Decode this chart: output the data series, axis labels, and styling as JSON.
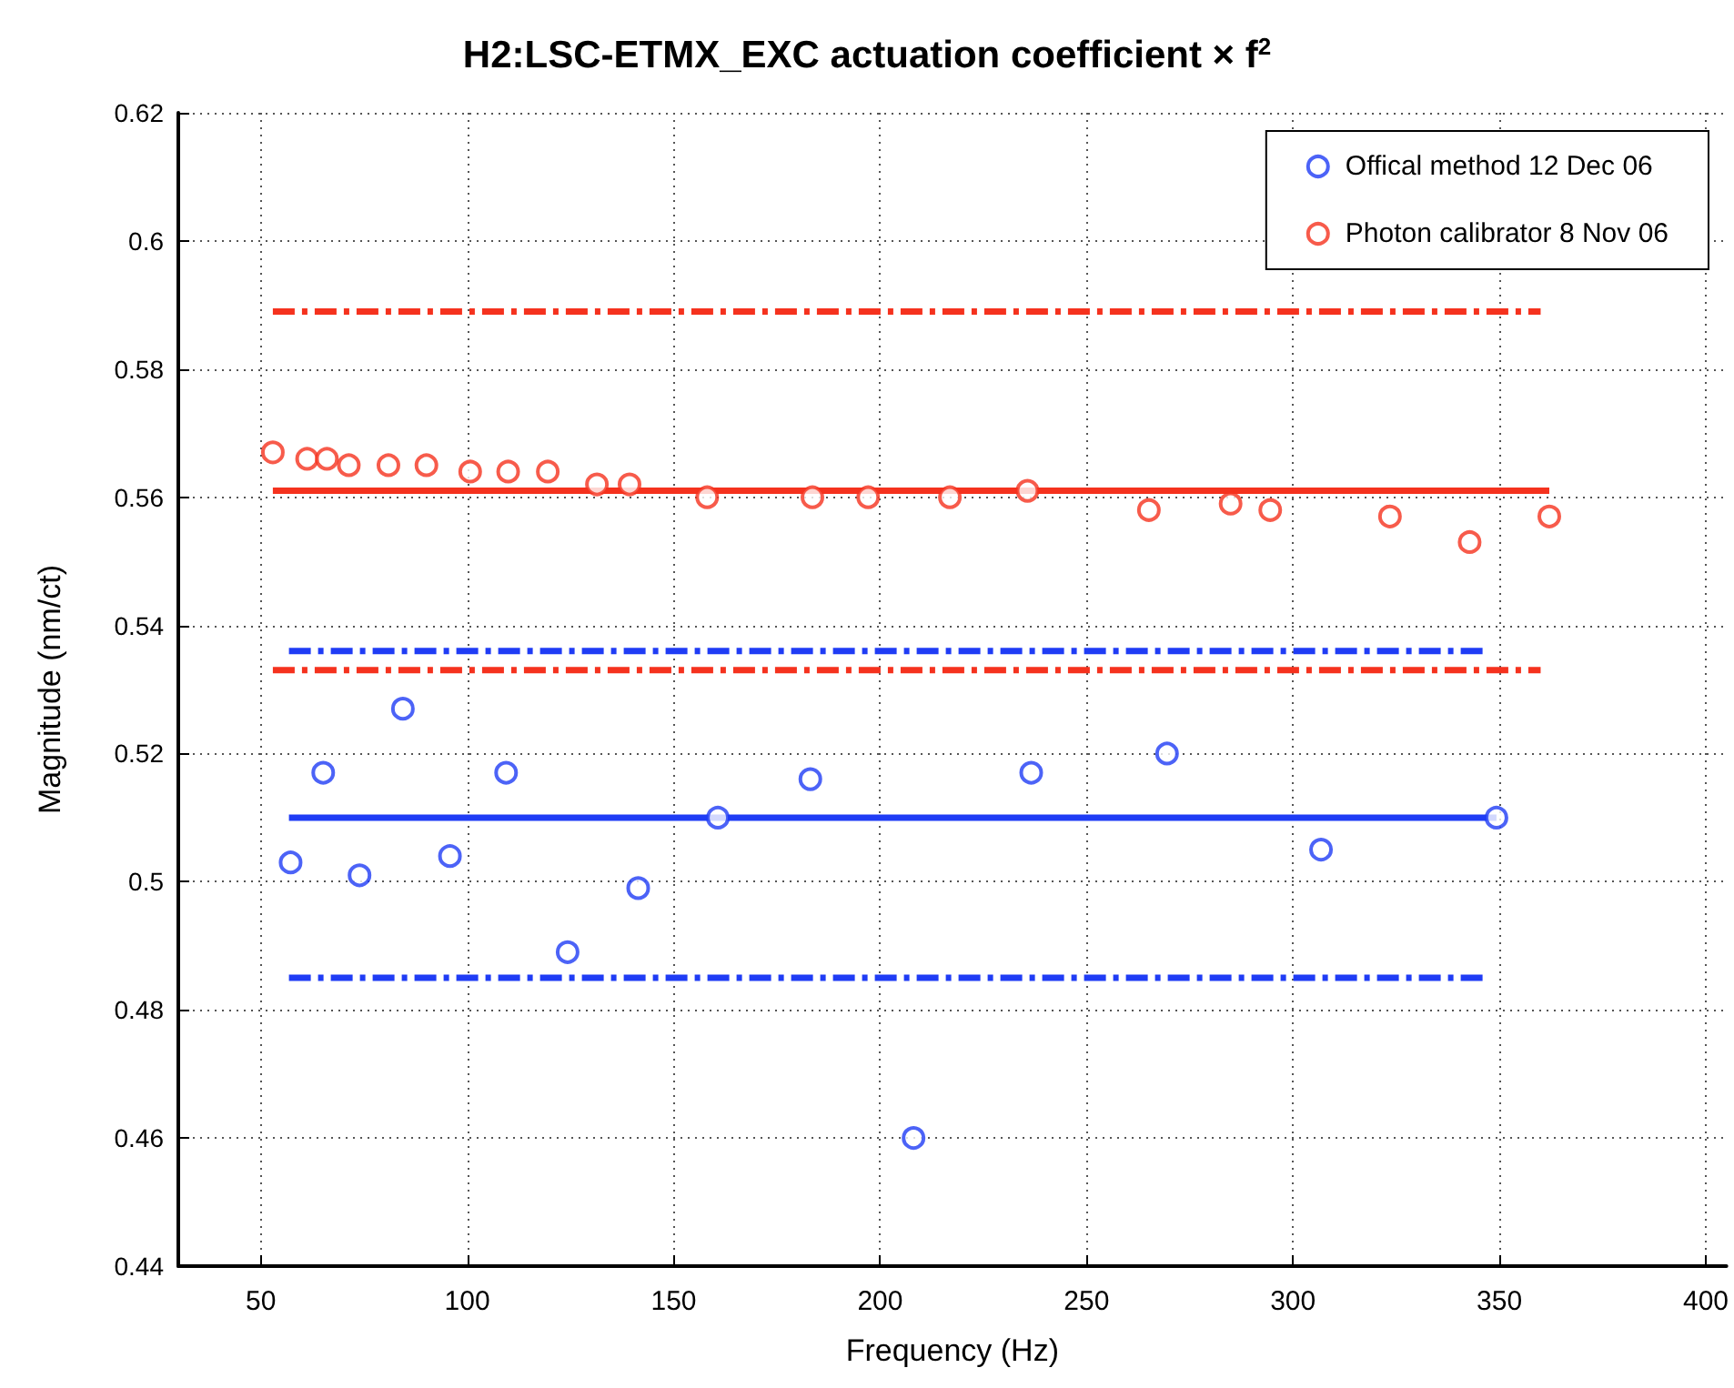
{
  "chart_data": {
    "type": "scatter",
    "title": "H2:LSC-ETMX_EXC actuation coefficient × f$^{2}$",
    "xlabel": "Frequency (Hz)",
    "ylabel": "Magnitude (nm/ct)",
    "xlim": [
      30,
      405
    ],
    "xticks": [
      50,
      100,
      150,
      200,
      250,
      300,
      350,
      400
    ],
    "ylim": [
      0.44,
      0.62
    ],
    "yticks": [
      0.44,
      0.46,
      0.48,
      0.5,
      0.52,
      0.54,
      0.56,
      0.58,
      0.6,
      0.62
    ],
    "grid": true,
    "legend": "top right",
    "marker": "circle",
    "series": [
      {
        "name": "Offical method 12 Dec 06",
        "color": "#1f3cf5",
        "x": [
          57.2,
          65.1,
          73.9,
          84.4,
          95.8,
          109.4,
          124.3,
          141.4,
          160.7,
          183.1,
          208.1,
          236.6,
          269.5,
          306.8,
          349.3
        ],
        "values": [
          0.503,
          0.517,
          0.501,
          0.527,
          0.504,
          0.517,
          0.489,
          0.499,
          0.51,
          0.516,
          0.46,
          0.517,
          0.52,
          0.505,
          0.51
        ]
      },
      {
        "name": "Photon calibrator 8 Nov 06",
        "color": "#f5321e",
        "x": [
          52.9,
          61.2,
          66.0,
          71.3,
          80.9,
          90.1,
          100.7,
          109.9,
          119.5,
          131.4,
          139.3,
          158.1,
          183.6,
          197.1,
          216.9,
          235.7,
          265.1,
          284.9,
          294.5,
          323.5,
          342.8,
          362.1
        ],
        "values": [
          0.567,
          0.566,
          0.566,
          0.565,
          0.565,
          0.565,
          0.564,
          0.564,
          0.564,
          0.562,
          0.562,
          0.56,
          0.56,
          0.56,
          0.56,
          0.561,
          0.558,
          0.559,
          0.558,
          0.557,
          0.553,
          0.557
        ]
      },
      {
        "type": "line",
        "marker": "none",
        "color": "#1f3cf5",
        "line_style": "solid",
        "x": [
          56.8,
          349.3
        ],
        "values": [
          0.51,
          0.51
        ]
      },
      {
        "type": "line",
        "marker": "none",
        "color": "#1f3cf5",
        "line_style": "dashed",
        "x": [
          56.8,
          346.7
        ],
        "values": [
          0.536,
          0.536
        ]
      },
      {
        "type": "line",
        "marker": "none",
        "color": "#1f3cf5",
        "line_style": "dashed",
        "x": [
          56.8,
          346.7
        ],
        "values": [
          0.485,
          0.485
        ]
      },
      {
        "type": "line",
        "marker": "none",
        "color": "#f5321e",
        "line_style": "solid",
        "x": [
          52.9,
          362.1
        ],
        "values": [
          0.561,
          0.561
        ]
      },
      {
        "type": "line",
        "marker": "none",
        "color": "#f5321e",
        "line_style": "dashed",
        "x": [
          52.9,
          360
        ],
        "values": [
          0.589,
          0.589
        ]
      },
      {
        "type": "line",
        "marker": "none",
        "color": "#f5321e",
        "line_style": "dashed",
        "x": [
          52.9,
          360
        ],
        "values": [
          0.533,
          0.533
        ]
      }
    ]
  }
}
